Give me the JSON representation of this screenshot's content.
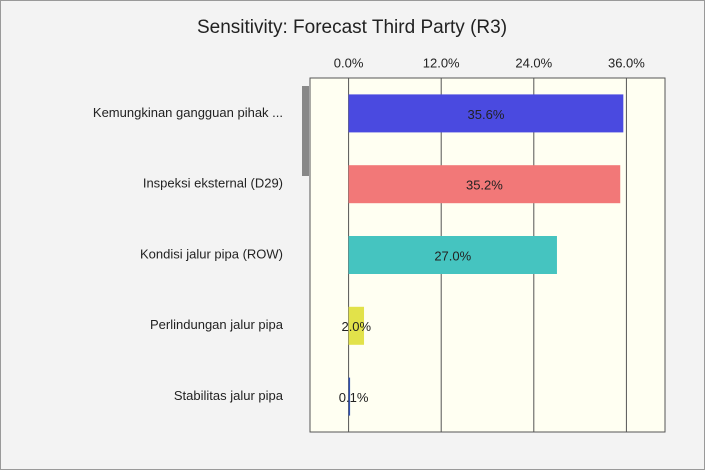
{
  "chart_data": {
    "type": "hbar",
    "title": "Sensitivity: Forecast Third Party (R3)",
    "categories": [
      "Kemungkinan gangguan pihak ...",
      "Inspeksi eksternal (D29)",
      "Kondisi jalur pipa (ROW)",
      "Perlindungan jalur pipa",
      "Stabilitas jalur pipa"
    ],
    "values": [
      35.6,
      35.2,
      27.0,
      2.0,
      0.1
    ],
    "value_labels": [
      "35.6%",
      "35.2%",
      "27.0%",
      "2.0%",
      "0.1%"
    ],
    "colors": [
      "#4a4ae0",
      "#f27878",
      "#45c4c0",
      "#e2e24a",
      "#3050b0"
    ],
    "xlim": [
      -5,
      41
    ],
    "xticks": [
      {
        "value": 0,
        "label": "0.0%"
      },
      {
        "value": 12,
        "label": "12.0%"
      },
      {
        "value": 24,
        "label": "24.0%"
      },
      {
        "value": 36,
        "label": "36.0%"
      }
    ],
    "grid": true
  }
}
